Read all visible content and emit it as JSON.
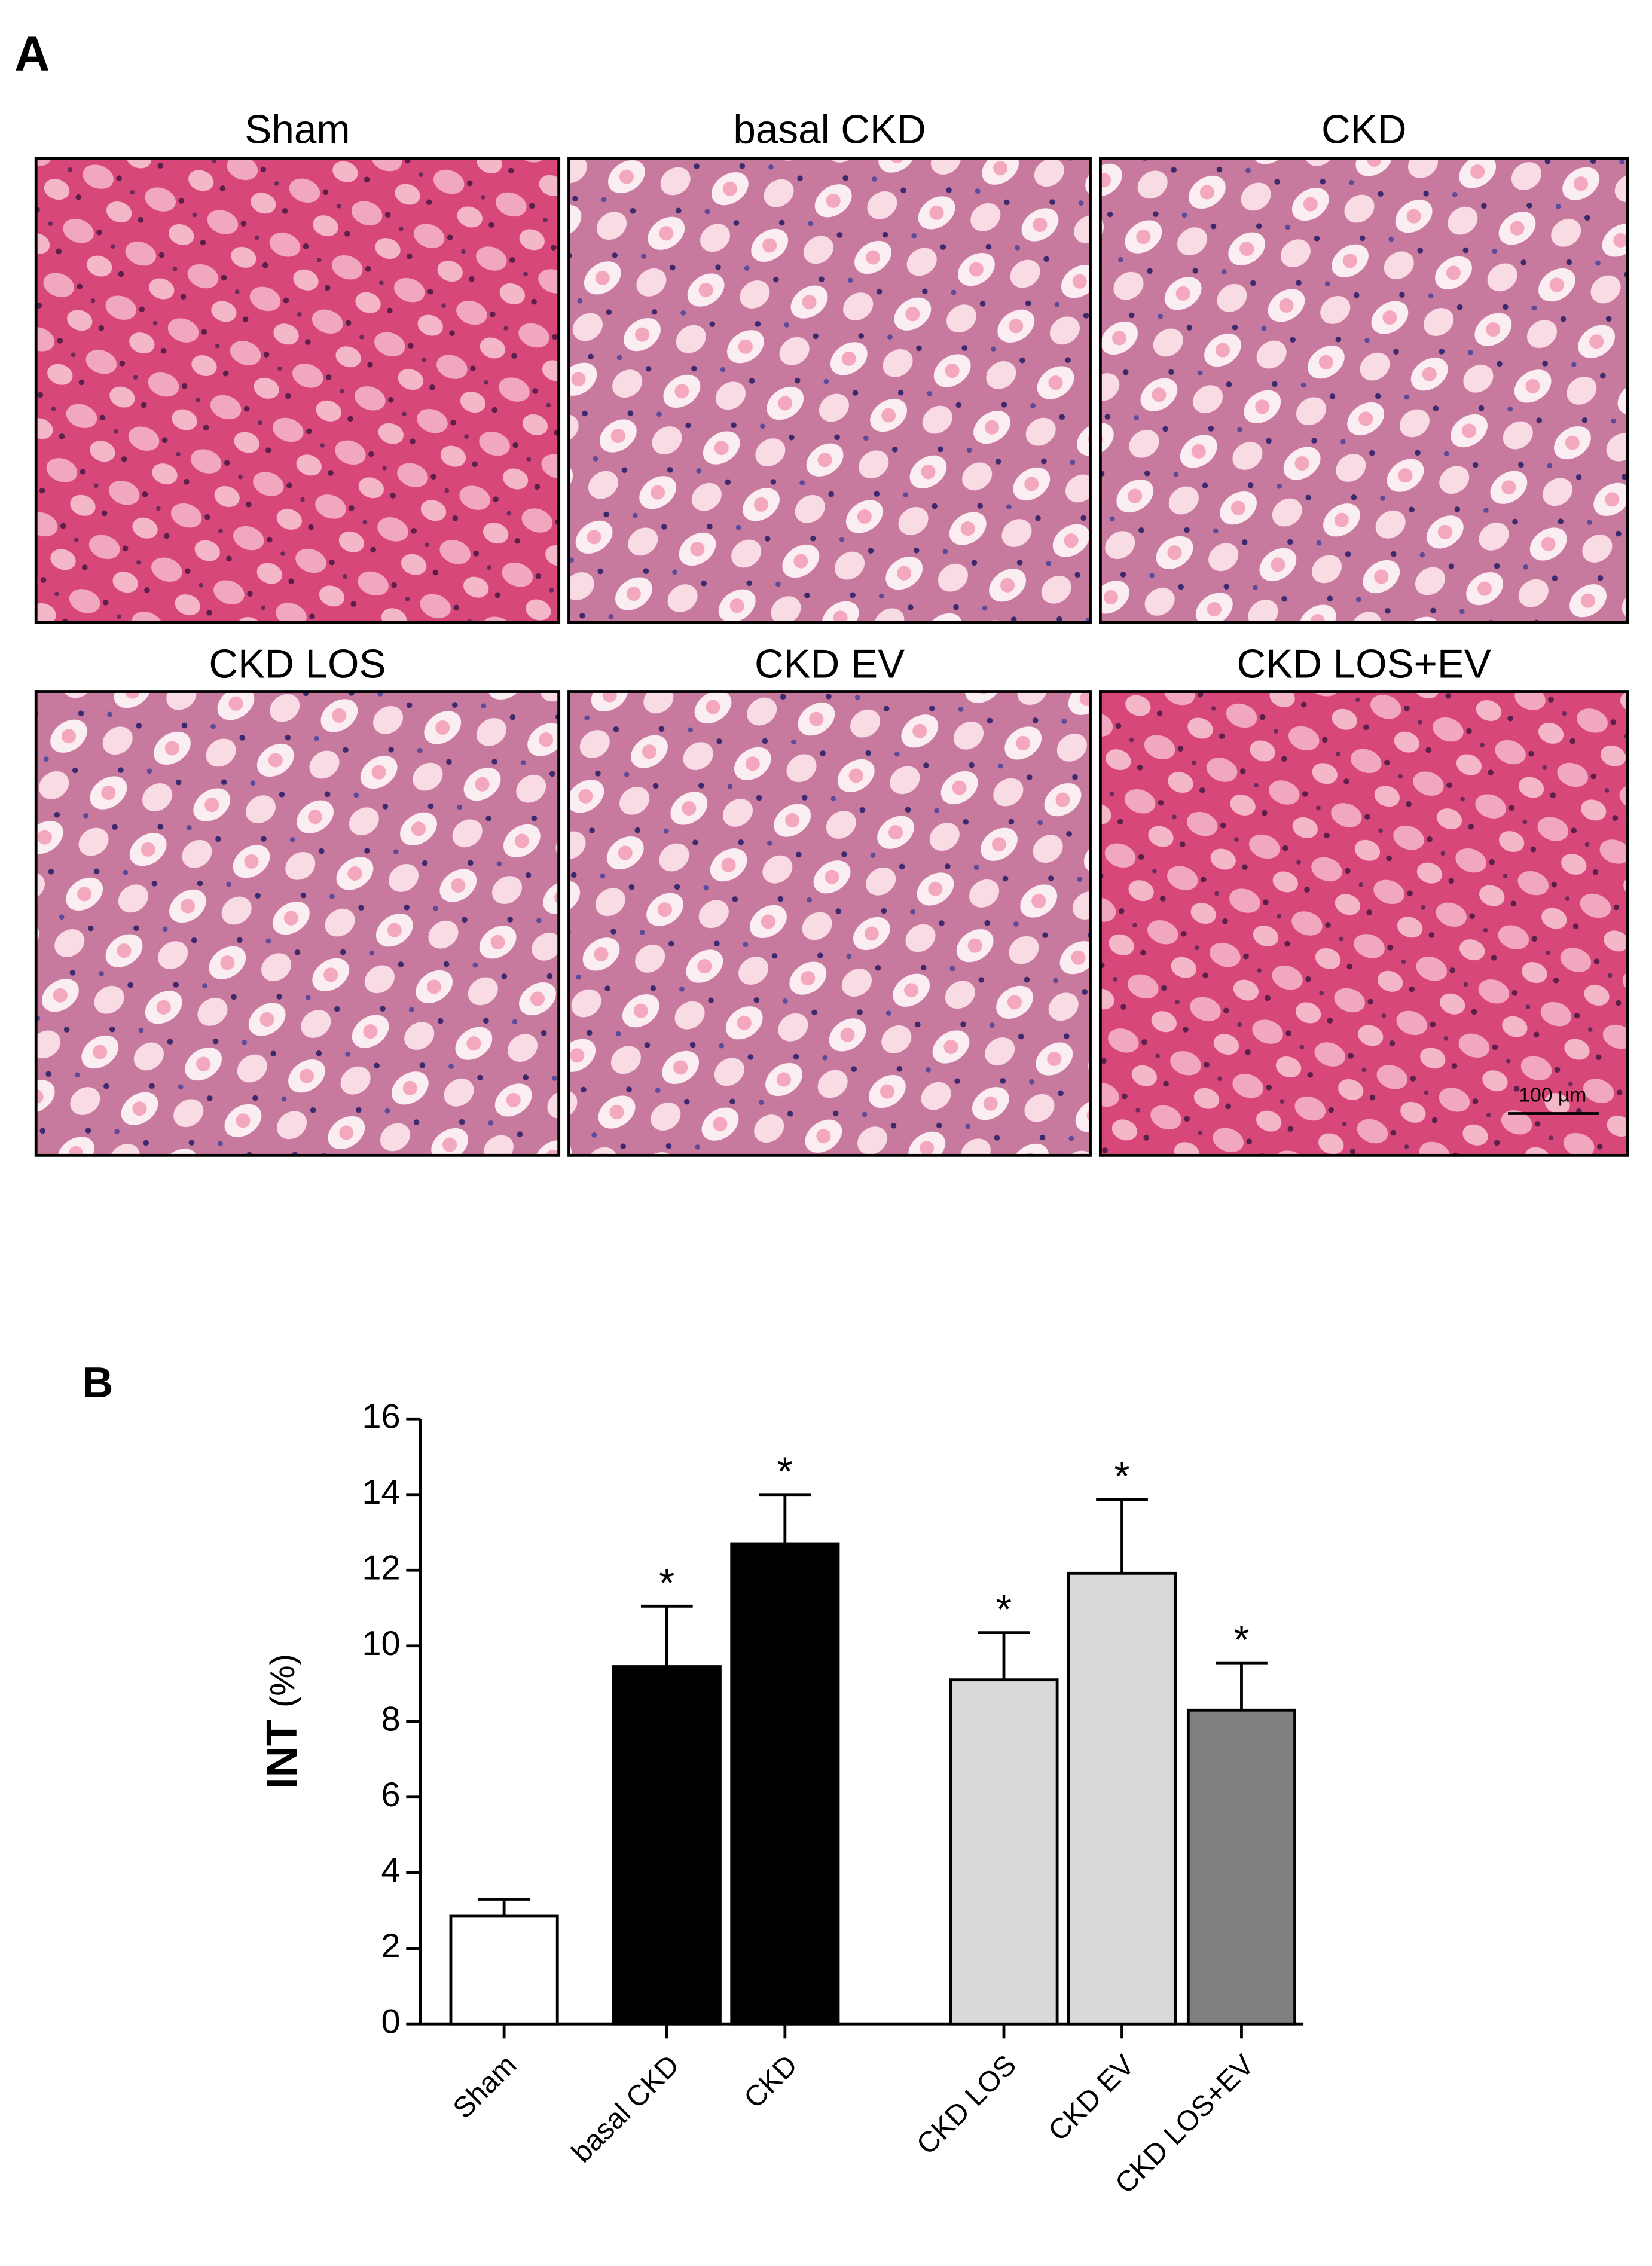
{
  "panel_a": {
    "label": "A",
    "images": [
      {
        "title": "Sham"
      },
      {
        "title": "basal CKD"
      },
      {
        "title": "CKD"
      },
      {
        "title": "CKD LOS"
      },
      {
        "title": "CKD EV"
      },
      {
        "title": "CKD LOS+EV"
      }
    ],
    "scale_bar": "100 µm"
  },
  "chart_data": {
    "type": "bar",
    "panel_label": "B",
    "ylabel": "INT",
    "ylabel_unit": "(%)",
    "categories": [
      "Sham",
      "basal CKD",
      "CKD",
      "CKD LOS",
      "CKD EV",
      "CKD LOS+EV"
    ],
    "values": [
      2.85,
      9.45,
      12.7,
      9.1,
      11.92,
      8.3
    ],
    "errors": [
      0.45,
      1.6,
      1.3,
      1.25,
      1.95,
      1.25
    ],
    "significance": [
      null,
      "*",
      "*",
      "*",
      "*",
      "*"
    ],
    "colors": [
      "#ffffff",
      "#000000",
      "#000000",
      "#d9d9d9",
      "#d9d9d9",
      "#7f7f7f"
    ],
    "ylim": [
      0,
      16
    ],
    "yticks": [
      0,
      2,
      4,
      6,
      8,
      10,
      12,
      14,
      16
    ]
  }
}
